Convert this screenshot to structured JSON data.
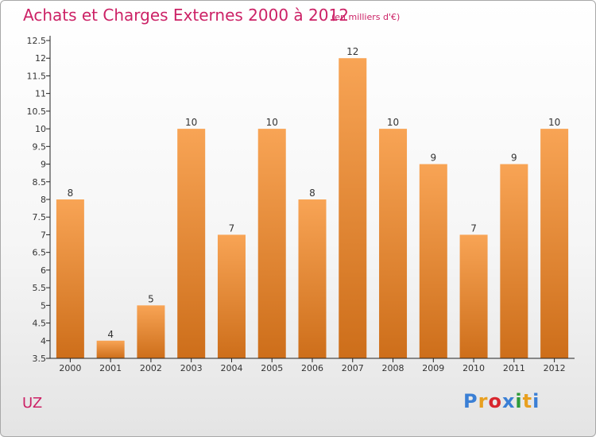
{
  "header": {
    "title": "Achats et Charges Externes 2000 à 2012",
    "unit": "(en milliers d'€)"
  },
  "footer": {
    "location": "UZ",
    "logo_text": "Proxiti",
    "logo_colors": [
      "#3a7fd5",
      "#e8a020",
      "#d8262e",
      "#3a7fd5",
      "#2e9a3a",
      "#e8a020",
      "#3a7fd5"
    ]
  },
  "colors": {
    "bar_top": "#f8a455",
    "bar_bottom": "#cd6e1a",
    "axis": "#222222",
    "text": "#333333",
    "accent": "#cc2266"
  },
  "chart_data": {
    "type": "bar",
    "categories": [
      "2000",
      "2001",
      "2002",
      "2003",
      "2004",
      "2005",
      "2006",
      "2007",
      "2008",
      "2009",
      "2010",
      "2011",
      "2012"
    ],
    "values": [
      8,
      4,
      5,
      10,
      7,
      10,
      8,
      12,
      10,
      9,
      7,
      9,
      10
    ],
    "data_labels": [
      "8",
      "4",
      "5",
      "10",
      "7",
      "10",
      "8",
      "12",
      "10",
      "9",
      "7",
      "9",
      "10"
    ],
    "ylim": [
      3.5,
      12.5
    ],
    "yticks": [
      "3.5",
      "4",
      "4.5",
      "5",
      "5.5",
      "6",
      "6.5",
      "7",
      "7.5",
      "8",
      "8.5",
      "9",
      "9.5",
      "10",
      "10.5",
      "11",
      "11.5",
      "12",
      "12.5"
    ],
    "title": "Achats et Charges Externes 2000 à 2012",
    "xlabel": "",
    "ylabel": "",
    "grid": false
  }
}
